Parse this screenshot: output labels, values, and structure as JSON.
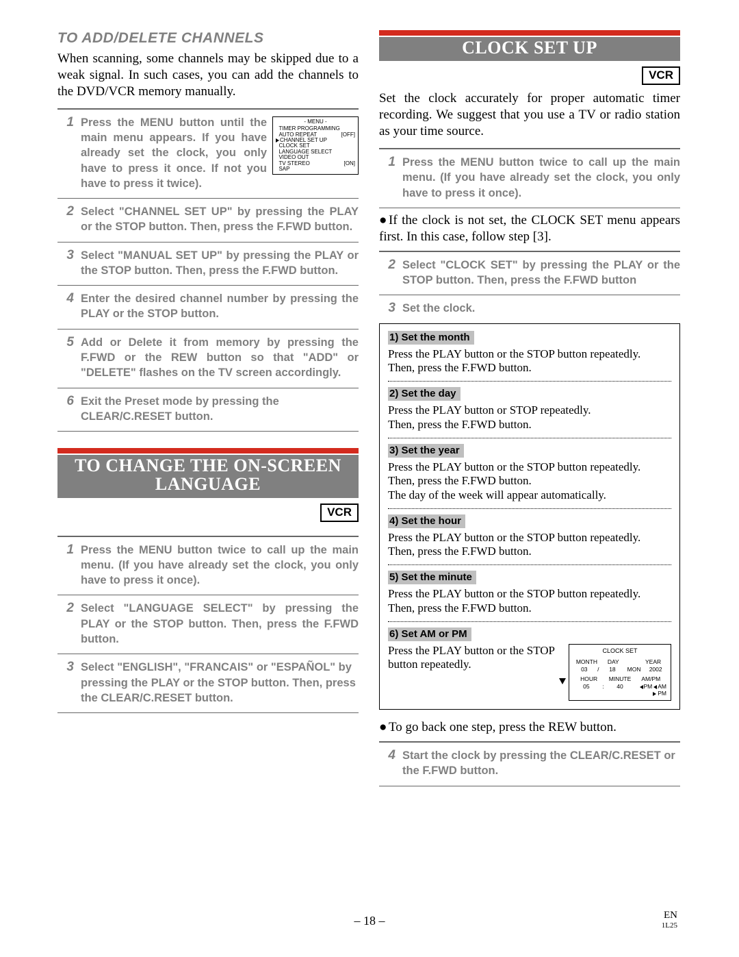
{
  "left": {
    "subHeading": "TO ADD/DELETE CHANNELS",
    "intro": "When scanning, some channels may be skipped due to a weak signal. In such cases, you can add  the channels to the DVD/VCR memory manually.",
    "steps": [
      {
        "n": "1",
        "text": "Press the MENU button until the main menu appears.  If you have already set the clock, you only have to press it once.  If not you have to press it twice)."
      },
      {
        "n": "2",
        "text": "Select \"CHANNEL SET UP\" by pressing the PLAY or the STOP button. Then, press the F.FWD button."
      },
      {
        "n": "3",
        "text": "Select \"MANUAL SET UP\" by pressing  the PLAY or the STOP button. Then, press the F.FWD button."
      },
      {
        "n": "4",
        "text": "Enter the desired channel number by pressing the PLAY or the STOP button."
      },
      {
        "n": "5",
        "text": "Add or Delete it from memory by pressing the F.FWD or the REW button so that \"ADD\" or \"DELETE\" flashes on the TV screen accordingly."
      },
      {
        "n": "6",
        "text": "Exit the Preset mode by pressing the CLEAR/C.RESET button."
      }
    ],
    "menuBox": {
      "title": "- MENU -",
      "rows": [
        {
          "l": "TIMER PROGRAMMING",
          "r": ""
        },
        {
          "l": "AUTO REPEAT",
          "r": "[OFF]"
        },
        {
          "l": "CHANNEL SET UP",
          "r": "",
          "sel": true
        },
        {
          "l": "CLOCK SET",
          "r": ""
        },
        {
          "l": "LANGUAGE SELECT",
          "r": ""
        },
        {
          "l": "VIDEO OUT",
          "r": ""
        },
        {
          "l": "TV STEREO",
          "r": "[ON]"
        },
        {
          "l": "SAP",
          "r": ""
        }
      ]
    },
    "banner": {
      "line1": "TO CHANGE THE ON-SCREEN",
      "line2": "LANGUAGE"
    },
    "vcr": "VCR",
    "langSteps": [
      {
        "n": "1",
        "text": "Press the MENU button twice to call up the main menu. (If you have already set the clock, you only have to press it once)."
      },
      {
        "n": "2",
        "text": "Select \"LANGUAGE SELECT\" by pressing the PLAY or the STOP button. Then, press the F.FWD button."
      },
      {
        "n": "3",
        "text": "Select \"ENGLISH\", \"FRANCAIS\" or \"ESPAÑOL\" by pressing the PLAY or  the STOP button. Then, press the CLEAR/C.RESET button."
      }
    ]
  },
  "right": {
    "banner": "CLOCK SET UP",
    "vcr": "VCR",
    "intro": "Set the clock accurately for proper automatic timer recording. We suggest that you use a TV or radio station as your time source.",
    "steps1": [
      {
        "n": "1",
        "text": "Press the MENU button twice to call up the main menu. (If you have already set the clock, you only have to press it once)."
      }
    ],
    "note": "If the clock is not set, the CLOCK SET menu appears first. In this case, follow step [3].",
    "steps2": [
      {
        "n": "2",
        "text": "Select \"CLOCK SET\" by pressing the PLAY or the STOP button. Then, press the F.FWD button"
      },
      {
        "n": "3",
        "text": "Set the clock."
      }
    ],
    "substeps": [
      {
        "label": "1) Set the month",
        "body": "Press the PLAY button or the STOP button repeatedly.\nThen, press the F.FWD button."
      },
      {
        "label": "2) Set the day",
        "body": "Press the PLAY button or STOP repeatedly.\nThen, press the F.FWD button."
      },
      {
        "label": "3) Set the year",
        "body": "Press the PLAY button or the STOP button repeatedly.\nThen, press the F.FWD button.\nThe day of the week will appear automatically."
      },
      {
        "label": "4) Set the hour",
        "body": "Press the PLAY button or the STOP button repeatedly.\nThen, press the F.FWD button."
      },
      {
        "label": "5) Set the minute",
        "body": "Press the PLAY button or the STOP button repeatedly.\nThen, press the F.FWD button."
      },
      {
        "label": "6) Set AM or PM",
        "body": "Press the PLAY button or the STOP button repeatedly."
      }
    ],
    "clockBox": {
      "title": "CLOCK SET",
      "h1": [
        "MONTH",
        "DAY",
        "",
        "YEAR"
      ],
      "v1": [
        "03",
        "/",
        "18",
        "MON",
        "2002"
      ],
      "h2": [
        "HOUR",
        "MINUTE",
        "AM/PM"
      ],
      "v2": [
        "05",
        ":",
        "40"
      ]
    },
    "postNote": "To go back one step, press the REW button.",
    "steps3": [
      {
        "n": "4",
        "text": "Start the clock by pressing the CLEAR/C.RESET or the F.FWD button."
      }
    ]
  },
  "footer": {
    "pageNum": "– 18 –",
    "right1": "EN",
    "right2": "1L25"
  },
  "colors": {
    "red": "#d32b1e",
    "gray": "#808080",
    "labelBg": "#bfbfbf",
    "text": "#000000",
    "bg": "#ffffff"
  }
}
